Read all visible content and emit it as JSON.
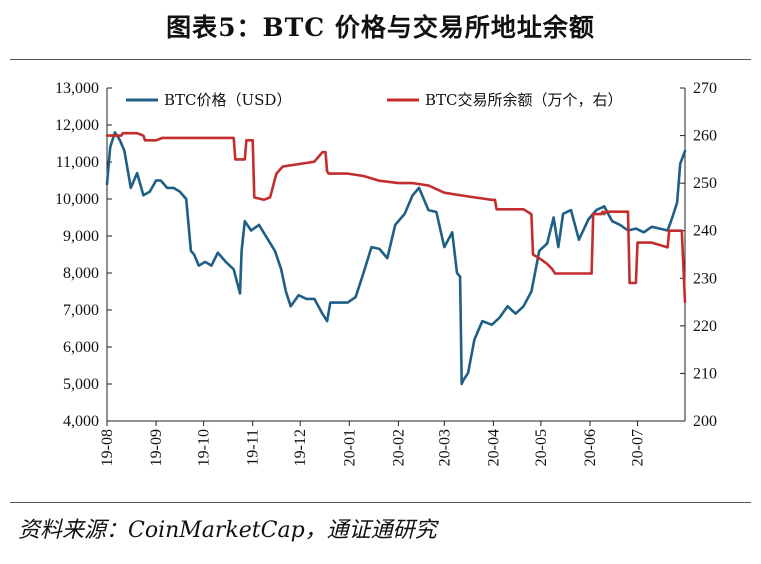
{
  "title": "图表5：BTC 价格与交易所地址余额",
  "source": "资料来源：CoinMarketCap，通证通研究",
  "colors": {
    "price": "#1f5f85",
    "balance": "#c42d2d",
    "axis": "#222222"
  },
  "chart_data": {
    "type": "line",
    "title": "图表5：BTC 价格与交易所地址余额",
    "x_tick_labels": [
      "19-08",
      "19-09",
      "19-10",
      "19-11",
      "19-12",
      "20-01",
      "20-02",
      "20-03",
      "20-04",
      "20-05",
      "20-06",
      "20-07"
    ],
    "x_range": [
      "2019-08-01",
      "2020-07-31"
    ],
    "ylim_left": [
      4000,
      13000
    ],
    "ylim_right": [
      200,
      270
    ],
    "y_ticks_left": [
      "13,000",
      "12,000",
      "11,000",
      "10,000",
      "9,000",
      "8,000",
      "7,000",
      "6,000",
      "5,000",
      "4,000"
    ],
    "y_ticks_right": [
      "270",
      "260",
      "250",
      "240",
      "230",
      "220",
      "210",
      "200"
    ],
    "legend_position": "top",
    "grid": false,
    "series": [
      {
        "name": "BTC价格（USD）",
        "axis": "left",
        "x": [
          "2019-08-01",
          "2019-08-03",
          "2019-08-06",
          "2019-08-09",
          "2019-08-12",
          "2019-08-16",
          "2019-08-20",
          "2019-08-24",
          "2019-08-28",
          "2019-09-01",
          "2019-09-04",
          "2019-09-08",
          "2019-09-12",
          "2019-09-16",
          "2019-09-20",
          "2019-09-23",
          "2019-09-25",
          "2019-09-28",
          "2019-10-02",
          "2019-10-06",
          "2019-10-10",
          "2019-10-15",
          "2019-10-20",
          "2019-10-24",
          "2019-10-25",
          "2019-10-27",
          "2019-10-31",
          "2019-11-05",
          "2019-11-10",
          "2019-11-15",
          "2019-11-19",
          "2019-11-22",
          "2019-11-25",
          "2019-11-30",
          "2019-12-05",
          "2019-12-10",
          "2019-12-15",
          "2019-12-18",
          "2019-12-20",
          "2019-12-25",
          "2019-12-31",
          "2020-01-05",
          "2020-01-10",
          "2020-01-15",
          "2020-01-20",
          "2020-01-25",
          "2020-01-30",
          "2020-02-05",
          "2020-02-10",
          "2020-02-14",
          "2020-02-20",
          "2020-02-25",
          "2020-03-01",
          "2020-03-06",
          "2020-03-09",
          "2020-03-11",
          "2020-03-12",
          "2020-03-13",
          "2020-03-16",
          "2020-03-20",
          "2020-03-25",
          "2020-03-31",
          "2020-04-05",
          "2020-04-10",
          "2020-04-15",
          "2020-04-20",
          "2020-04-25",
          "2020-04-30",
          "2020-05-05",
          "2020-05-09",
          "2020-05-12",
          "2020-05-15",
          "2020-05-20",
          "2020-05-25",
          "2020-05-31",
          "2020-06-05",
          "2020-06-10",
          "2020-06-15",
          "2020-06-20",
          "2020-06-25",
          "2020-06-30",
          "2020-07-05",
          "2020-07-10",
          "2020-07-15",
          "2020-07-20",
          "2020-07-23",
          "2020-07-26",
          "2020-07-28",
          "2020-07-31"
        ],
        "y": [
          10400,
          11400,
          11800,
          11600,
          11300,
          10300,
          10700,
          10100,
          10200,
          10500,
          10500,
          10300,
          10300,
          10200,
          10000,
          8600,
          8500,
          8200,
          8300,
          8200,
          8550,
          8300,
          8100,
          7450,
          8600,
          9400,
          9150,
          9300,
          8950,
          8600,
          8100,
          7500,
          7100,
          7400,
          7300,
          7300,
          6900,
          6700,
          7200,
          7200,
          7200,
          7350,
          8000,
          8700,
          8650,
          8400,
          9300,
          9600,
          10100,
          10300,
          9700,
          9650,
          8700,
          9100,
          8000,
          7900,
          5000,
          5100,
          5300,
          6200,
          6700,
          6600,
          6800,
          7100,
          6900,
          7100,
          7500,
          8600,
          8800,
          9500,
          8700,
          9600,
          9700,
          8900,
          9450,
          9700,
          9800,
          9400,
          9300,
          9150,
          9200,
          9100,
          9250,
          9200,
          9150,
          9500,
          9900,
          10950,
          11300
        ]
      },
      {
        "name": "BTC交易所余额（万个，右）",
        "axis": "right",
        "x": [
          "2019-08-01",
          "2019-08-10",
          "2019-08-11",
          "2019-08-20",
          "2019-08-24",
          "2019-08-25",
          "2019-09-01",
          "2019-09-05",
          "2019-09-10",
          "2019-09-20",
          "2019-10-01",
          "2019-10-20",
          "2019-10-21",
          "2019-10-27",
          "2019-10-28",
          "2019-11-01",
          "2019-11-02",
          "2019-11-08",
          "2019-11-12",
          "2019-11-16",
          "2019-11-20",
          "2019-11-30",
          "2019-12-10",
          "2019-12-15",
          "2019-12-17",
          "2019-12-18",
          "2019-12-19",
          "2019-12-31",
          "2020-01-10",
          "2020-01-20",
          "2020-02-01",
          "2020-02-10",
          "2020-02-20",
          "2020-03-01",
          "2020-03-10",
          "2020-03-20",
          "2020-03-31",
          "2020-04-02",
          "2020-04-03",
          "2020-04-10",
          "2020-04-20",
          "2020-04-25",
          "2020-04-26",
          "2020-05-01",
          "2020-05-05",
          "2020-05-08",
          "2020-05-10",
          "2020-05-20",
          "2020-05-31",
          "2020-06-02",
          "2020-06-03",
          "2020-06-08",
          "2020-06-09",
          "2020-06-10",
          "2020-06-11",
          "2020-06-25",
          "2020-06-26",
          "2020-06-30",
          "2020-07-01",
          "2020-07-10",
          "2020-07-20",
          "2020-07-21",
          "2020-07-28",
          "2020-07-29",
          "2020-07-31"
        ],
        "y": [
          260,
          260,
          260.5,
          260.5,
          260,
          259,
          259,
          259.5,
          259.5,
          259.5,
          259.5,
          259.5,
          255,
          255,
          259,
          259,
          247,
          246.5,
          247,
          252,
          253.5,
          254,
          254.5,
          256.5,
          256.5,
          252.5,
          252,
          252,
          251.5,
          250.5,
          250,
          250,
          249.5,
          248,
          247.5,
          247,
          246.5,
          246.5,
          244.5,
          244.5,
          244.5,
          243.5,
          235,
          234,
          233,
          232,
          231,
          231,
          231,
          231,
          243.5,
          243.5,
          244,
          243.5,
          244,
          244,
          229,
          229,
          237.5,
          237.5,
          236.5,
          240,
          240,
          240,
          225
        ]
      }
    ]
  }
}
